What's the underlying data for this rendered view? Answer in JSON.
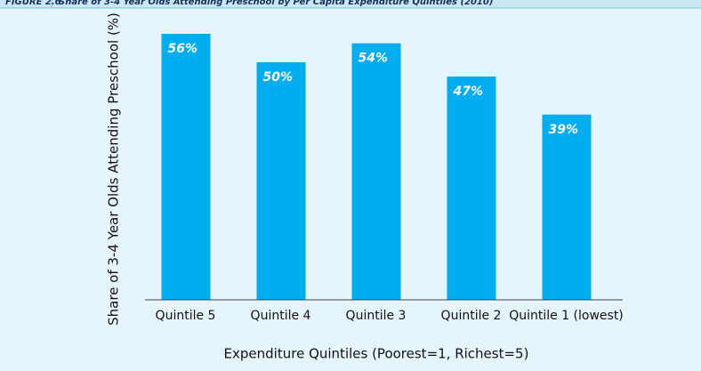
{
  "chart_data": {
    "type": "bar",
    "figure_label": "FIGURE 2.6",
    "title": "Share of 3-4 Year Olds Attending Preschool by Per Capita Expenditure Quintiles (2010)",
    "x_label": "Expenditure Quintiles (Poorest=1, Richest=5)",
    "y_label": "Share of 3-4 Year Olds Attending Preschool (%)",
    "categories": [
      "Quintile 5",
      "Quintile 4",
      "Quintile 3",
      "Quintile 2",
      "Quintile 1 (lowest)"
    ],
    "values": [
      56,
      50,
      54,
      47,
      39
    ],
    "value_labels": [
      "56%",
      "50%",
      "54%",
      "47%",
      "39%"
    ],
    "color": "#00aeef",
    "ylim": [
      0,
      56
    ]
  }
}
